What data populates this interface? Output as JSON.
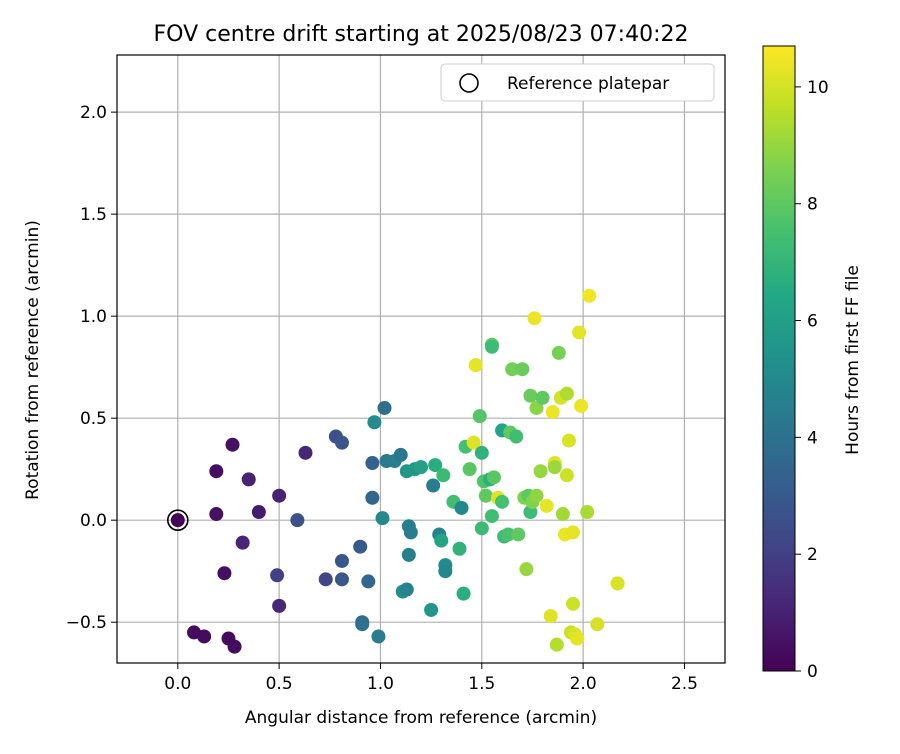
{
  "chart_data": {
    "type": "scatter",
    "title": "FOV centre drift starting at 2025/08/23 07:40:22",
    "xlabel": "Angular distance from reference (arcmin)",
    "ylabel": "Rotation from reference (arcmin)",
    "xlim": [
      -0.3,
      2.7
    ],
    "ylim": [
      -0.7,
      2.28
    ],
    "xticks": [
      0.0,
      0.5,
      1.0,
      1.5,
      2.0,
      2.5
    ],
    "xtick_labels": [
      "0.0",
      "0.5",
      "1.0",
      "1.5",
      "2.0",
      "2.5"
    ],
    "yticks": [
      -0.5,
      0.0,
      0.5,
      1.0,
      1.5,
      2.0
    ],
    "ytick_labels": [
      "−0.5",
      "0.0",
      "0.5",
      "1.0",
      "1.5",
      "2.0"
    ],
    "grid": true,
    "legend": {
      "position": "top-right",
      "entries": [
        "Reference platepar"
      ]
    },
    "reference_point": {
      "x": 0.0,
      "y": 0.0,
      "hours": 0
    },
    "colorbar": {
      "label": "Hours from first FF file",
      "range": [
        0,
        10.7
      ],
      "ticks": [
        0,
        2,
        4,
        6,
        8,
        10
      ],
      "tick_labels": [
        "0",
        "2",
        "4",
        "6",
        "8",
        "10"
      ],
      "colormap": "viridis"
    },
    "points": [
      {
        "x": 0.0,
        "y": 0.0,
        "h": 0.05
      },
      {
        "x": 0.08,
        "y": -0.55,
        "h": 0.3
      },
      {
        "x": 0.13,
        "y": -0.57,
        "h": 0.3
      },
      {
        "x": 0.25,
        "y": -0.58,
        "h": 0.3
      },
      {
        "x": 0.28,
        "y": -0.62,
        "h": 0.35
      },
      {
        "x": 0.23,
        "y": -0.26,
        "h": 0.45
      },
      {
        "x": 0.19,
        "y": 0.03,
        "h": 0.5
      },
      {
        "x": 0.19,
        "y": 0.24,
        "h": 0.4
      },
      {
        "x": 0.27,
        "y": 0.37,
        "h": 0.5
      },
      {
        "x": 0.35,
        "y": 0.2,
        "h": 1.0
      },
      {
        "x": 0.4,
        "y": 0.04,
        "h": 0.8
      },
      {
        "x": 0.32,
        "y": -0.11,
        "h": 1.1
      },
      {
        "x": 0.5,
        "y": 0.12,
        "h": 1.0
      },
      {
        "x": 0.5,
        "y": -0.42,
        "h": 1.2
      },
      {
        "x": 0.49,
        "y": -0.27,
        "h": 2.0
      },
      {
        "x": 0.59,
        "y": 0.0,
        "h": 2.6
      },
      {
        "x": 0.63,
        "y": 0.33,
        "h": 1.2
      },
      {
        "x": 0.73,
        "y": -0.29,
        "h": 2.2
      },
      {
        "x": 0.78,
        "y": 0.41,
        "h": 2.6
      },
      {
        "x": 0.81,
        "y": 0.38,
        "h": 2.8
      },
      {
        "x": 0.81,
        "y": -0.2,
        "h": 2.9
      },
      {
        "x": 0.81,
        "y": -0.29,
        "h": 2.9
      },
      {
        "x": 0.9,
        "y": -0.13,
        "h": 3.0
      },
      {
        "x": 0.91,
        "y": -0.5,
        "h": 3.5
      },
      {
        "x": 0.91,
        "y": -0.51,
        "h": 4.0
      },
      {
        "x": 0.94,
        "y": -0.3,
        "h": 3.6
      },
      {
        "x": 0.96,
        "y": 0.28,
        "h": 3.3
      },
      {
        "x": 0.96,
        "y": 0.11,
        "h": 3.5
      },
      {
        "x": 0.97,
        "y": 0.48,
        "h": 5.2
      },
      {
        "x": 0.99,
        "y": -0.57,
        "h": 4.5
      },
      {
        "x": 1.01,
        "y": 0.01,
        "h": 5.0
      },
      {
        "x": 1.02,
        "y": 0.55,
        "h": 3.9
      },
      {
        "x": 1.03,
        "y": 0.29,
        "h": 4.4
      },
      {
        "x": 1.07,
        "y": 0.29,
        "h": 4.6
      },
      {
        "x": 1.1,
        "y": 0.32,
        "h": 4.3
      },
      {
        "x": 1.11,
        "y": -0.35,
        "h": 5.3
      },
      {
        "x": 1.13,
        "y": -0.34,
        "h": 4.7
      },
      {
        "x": 1.13,
        "y": 0.24,
        "h": 5.6
      },
      {
        "x": 1.14,
        "y": -0.17,
        "h": 4.6
      },
      {
        "x": 1.14,
        "y": -0.03,
        "h": 4.6
      },
      {
        "x": 1.15,
        "y": -0.06,
        "h": 4.5
      },
      {
        "x": 1.17,
        "y": 0.25,
        "h": 5.7
      },
      {
        "x": 1.2,
        "y": 0.26,
        "h": 6.1
      },
      {
        "x": 1.25,
        "y": -0.44,
        "h": 5.6
      },
      {
        "x": 1.26,
        "y": 0.17,
        "h": 4.5
      },
      {
        "x": 1.27,
        "y": 0.27,
        "h": 6.6
      },
      {
        "x": 1.29,
        "y": -0.07,
        "h": 4.7
      },
      {
        "x": 1.3,
        "y": -0.1,
        "h": 6.3
      },
      {
        "x": 1.31,
        "y": 0.22,
        "h": 7.2
      },
      {
        "x": 1.32,
        "y": -0.22,
        "h": 5.2
      },
      {
        "x": 1.32,
        "y": -0.25,
        "h": 4.9
      },
      {
        "x": 1.36,
        "y": 0.09,
        "h": 7.4
      },
      {
        "x": 1.39,
        "y": -0.14,
        "h": 6.9
      },
      {
        "x": 1.4,
        "y": 0.06,
        "h": 5.0
      },
      {
        "x": 1.41,
        "y": -0.36,
        "h": 6.7
      },
      {
        "x": 1.42,
        "y": 0.36,
        "h": 7.5
      },
      {
        "x": 1.44,
        "y": 0.25,
        "h": 7.9
      },
      {
        "x": 1.46,
        "y": 0.38,
        "h": 10.2
      },
      {
        "x": 1.47,
        "y": 0.76,
        "h": 10.3
      },
      {
        "x": 1.49,
        "y": 0.51,
        "h": 7.8
      },
      {
        "x": 1.5,
        "y": 0.33,
        "h": 6.9
      },
      {
        "x": 1.5,
        "y": -0.04,
        "h": 7.2
      },
      {
        "x": 1.51,
        "y": 0.19,
        "h": 7.7
      },
      {
        "x": 1.52,
        "y": 0.12,
        "h": 8.0
      },
      {
        "x": 1.54,
        "y": 0.2,
        "h": 6.8
      },
      {
        "x": 1.55,
        "y": 0.02,
        "h": 7.4
      },
      {
        "x": 1.55,
        "y": 0.86,
        "h": 8.0
      },
      {
        "x": 1.55,
        "y": 0.85,
        "h": 7.3
      },
      {
        "x": 1.56,
        "y": 0.21,
        "h": 7.9
      },
      {
        "x": 1.58,
        "y": 0.11,
        "h": 10.2
      },
      {
        "x": 1.6,
        "y": 0.09,
        "h": 7.5
      },
      {
        "x": 1.6,
        "y": 0.44,
        "h": 6.2
      },
      {
        "x": 1.61,
        "y": -0.08,
        "h": 7.3
      },
      {
        "x": 1.63,
        "y": -0.07,
        "h": 7.6
      },
      {
        "x": 1.64,
        "y": 0.43,
        "h": 8.0
      },
      {
        "x": 1.65,
        "y": 0.74,
        "h": 8.4
      },
      {
        "x": 1.67,
        "y": 0.41,
        "h": 7.4
      },
      {
        "x": 1.68,
        "y": -0.07,
        "h": 8.0
      },
      {
        "x": 1.7,
        "y": 0.74,
        "h": 8.2
      },
      {
        "x": 1.71,
        "y": 0.11,
        "h": 8.6
      },
      {
        "x": 1.72,
        "y": -0.24,
        "h": 9.0
      },
      {
        "x": 1.73,
        "y": 0.12,
        "h": 8.0
      },
      {
        "x": 1.74,
        "y": 0.61,
        "h": 8.2
      },
      {
        "x": 1.74,
        "y": 0.04,
        "h": 7.3
      },
      {
        "x": 1.75,
        "y": 0.09,
        "h": 8.6
      },
      {
        "x": 1.76,
        "y": 0.99,
        "h": 10.4
      },
      {
        "x": 1.77,
        "y": 0.12,
        "h": 8.9
      },
      {
        "x": 1.77,
        "y": 0.55,
        "h": 8.8
      },
      {
        "x": 1.79,
        "y": 0.24,
        "h": 9.0
      },
      {
        "x": 1.8,
        "y": 0.6,
        "h": 8.0
      },
      {
        "x": 1.82,
        "y": 0.07,
        "h": 10.3
      },
      {
        "x": 1.84,
        "y": -0.47,
        "h": 10.2
      },
      {
        "x": 1.85,
        "y": 0.53,
        "h": 10.4
      },
      {
        "x": 1.86,
        "y": 0.28,
        "h": 10.2
      },
      {
        "x": 1.86,
        "y": 0.26,
        "h": 9.1
      },
      {
        "x": 1.87,
        "y": -0.61,
        "h": 9.5
      },
      {
        "x": 1.88,
        "y": 0.82,
        "h": 8.5
      },
      {
        "x": 1.89,
        "y": 0.6,
        "h": 10.0
      },
      {
        "x": 1.9,
        "y": 0.03,
        "h": 9.2
      },
      {
        "x": 1.91,
        "y": -0.07,
        "h": 10.4
      },
      {
        "x": 1.92,
        "y": 0.62,
        "h": 9.4
      },
      {
        "x": 1.92,
        "y": 0.22,
        "h": 9.9
      },
      {
        "x": 1.93,
        "y": 0.39,
        "h": 10.1
      },
      {
        "x": 1.94,
        "y": -0.55,
        "h": 9.8
      },
      {
        "x": 1.95,
        "y": -0.06,
        "h": 10.3
      },
      {
        "x": 1.95,
        "y": -0.41,
        "h": 9.9
      },
      {
        "x": 1.96,
        "y": -0.56,
        "h": 10.1
      },
      {
        "x": 1.97,
        "y": -0.58,
        "h": 10.3
      },
      {
        "x": 1.98,
        "y": 0.92,
        "h": 10.3
      },
      {
        "x": 1.99,
        "y": 0.56,
        "h": 10.4
      },
      {
        "x": 2.02,
        "y": 0.04,
        "h": 9.3
      },
      {
        "x": 2.03,
        "y": 1.1,
        "h": 10.5
      },
      {
        "x": 2.07,
        "y": -0.51,
        "h": 10.0
      },
      {
        "x": 2.17,
        "y": -0.31,
        "h": 10.1
      },
      {
        "x": 2.17,
        "y": -0.31,
        "h": 10.1
      }
    ]
  }
}
